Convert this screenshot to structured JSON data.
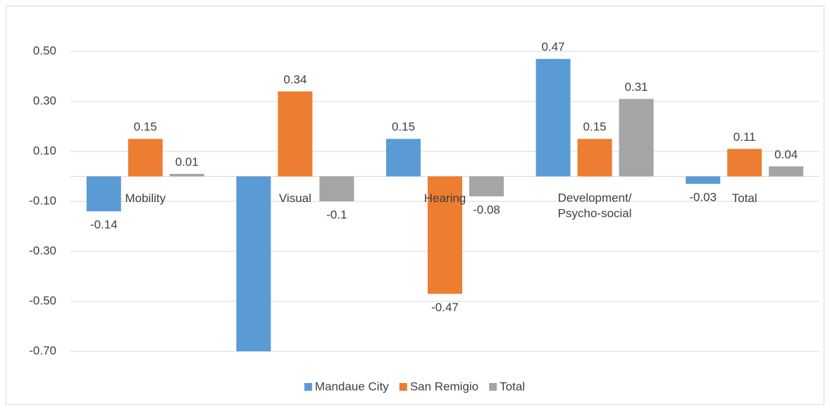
{
  "chart_data": {
    "type": "bar",
    "categories": [
      "Mobility",
      "Visual",
      "Hearing",
      "Development/ Psycho-social",
      "Total"
    ],
    "series": [
      {
        "name": "Mandaue City",
        "color": "#5b9bd5",
        "values": [
          -0.14,
          -0.7,
          0.15,
          0.47,
          -0.03
        ],
        "value_labels": [
          "-0.14",
          null,
          "0.15",
          "0.47",
          "-0.03"
        ]
      },
      {
        "name": "San Remigio",
        "color": "#ed7d31",
        "values": [
          0.15,
          0.34,
          -0.47,
          0.15,
          0.11
        ]
      },
      {
        "name": "Total",
        "color": "#a5a5a5",
        "values": [
          0.01,
          -0.1,
          -0.08,
          0.31,
          0.04
        ]
      }
    ],
    "ylim": [
      -0.7,
      0.5
    ],
    "yticks": [
      {
        "value": -0.7,
        "label": "-0.70"
      },
      {
        "value": -0.5,
        "label": "-0.50"
      },
      {
        "value": -0.3,
        "label": "-0.30"
      },
      {
        "value": -0.1,
        "label": "-0.10"
      },
      {
        "value": 0.1,
        "label": "0.10"
      },
      {
        "value": 0.3,
        "label": "0.30"
      },
      {
        "value": 0.5,
        "label": "0.50"
      }
    ],
    "grid": true,
    "legend": "bottom"
  }
}
